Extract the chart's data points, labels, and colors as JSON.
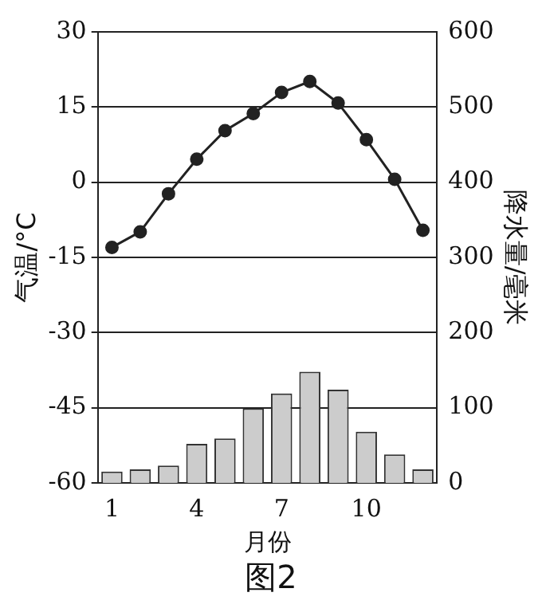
{
  "chart_data": {
    "type": "bar",
    "title": "图2",
    "xlabel": "月份",
    "ylabel": "气温/°C",
    "y2label": "降水量/毫米",
    "categories": [
      "1",
      null,
      null,
      "4",
      null,
      null,
      "7",
      null,
      null,
      "10",
      null,
      null
    ],
    "series": [
      {
        "type": "line",
        "color": "#222222",
        "axis": "y",
        "values": [
          -13.0,
          -9.9,
          -2.3,
          4.6,
          10.3,
          13.7,
          17.9,
          20.1,
          15.8,
          8.5,
          0.6,
          -9.6
        ]
      },
      {
        "color": "#cccccc",
        "axis": "y2",
        "values": [
          15,
          18,
          23,
          52,
          59,
          99,
          119,
          148,
          124,
          68,
          38,
          18
        ]
      }
    ],
    "ylim": [
      -60,
      30
    ],
    "yticks": [
      -60,
      -45,
      -30,
      -15,
      0,
      15,
      30
    ],
    "y2lim": [
      0,
      600
    ],
    "y2ticks": [
      0,
      100,
      200,
      300,
      400,
      500,
      600
    ],
    "grid": "y",
    "legend": false,
    "marker": "circle",
    "line_style": "solid"
  }
}
